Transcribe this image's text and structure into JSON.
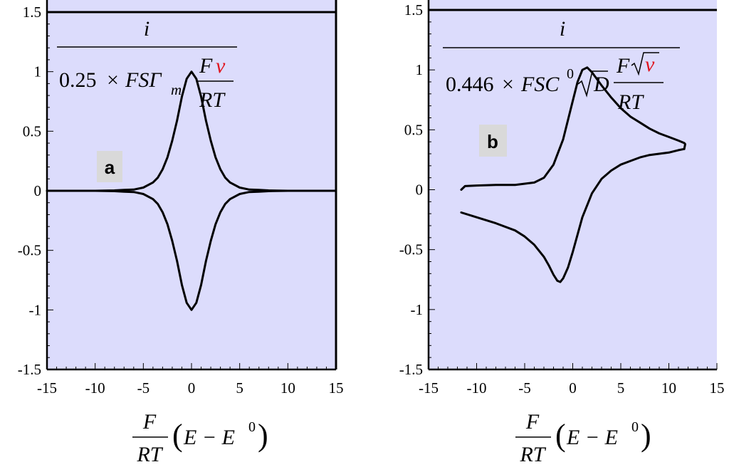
{
  "chart_data": [
    {
      "panel_label": "a",
      "type": "line",
      "xlim": [
        -15,
        15
      ],
      "ylim": [
        -1.5,
        1.5
      ],
      "xticks": [
        "-15",
        "-10",
        "-5",
        "0",
        "5",
        "10",
        "15"
      ],
      "yticks": [
        "-1.5",
        "-1",
        "-0.5",
        "0",
        "0.5",
        "1",
        "1.5"
      ],
      "ylabel": {
        "numerator": "i",
        "coefficient": "0.25",
        "times": "×",
        "factor_main": "FSΓ",
        "factor_sub": "m",
        "frac_num": "F",
        "frac_num_highlight": "v",
        "frac_den": "RT"
      },
      "xlabel": {
        "frac_num": "F",
        "frac_den": "RT",
        "paren_open": "(",
        "expr": "E − E",
        "expr_sup": "0",
        "paren_close": ")"
      },
      "background": "#dcdcfc",
      "line_color": "#000000",
      "highlight_color": "#e0141e",
      "series": [
        {
          "x": [
            -15,
            -12,
            -10,
            -8,
            -7,
            -6,
            -5,
            -4,
            -3.5,
            -3,
            -2.5,
            -2,
            -1.5,
            -1,
            -0.5,
            0,
            0.5,
            1,
            1.5,
            2,
            2.5,
            3,
            3.5,
            4,
            5,
            6,
            7,
            8,
            10,
            12,
            15
          ],
          "y": [
            0,
            0,
            0,
            0.003,
            0.007,
            0.01,
            0.027,
            0.07,
            0.11,
            0.18,
            0.28,
            0.42,
            0.59,
            0.79,
            0.94,
            1.0,
            0.94,
            0.79,
            0.59,
            0.42,
            0.28,
            0.18,
            0.11,
            0.07,
            0.027,
            0.01,
            0.007,
            0.003,
            0,
            0,
            0
          ]
        },
        {
          "x": [
            -15,
            -12,
            -10,
            -8,
            -7,
            -6,
            -5,
            -4,
            -3.5,
            -3,
            -2.5,
            -2,
            -1.5,
            -1,
            -0.5,
            0,
            0.5,
            1,
            1.5,
            2,
            2.5,
            3,
            3.5,
            4,
            5,
            6,
            7,
            8,
            10,
            12,
            15
          ],
          "y": [
            0,
            0,
            0,
            -0.003,
            -0.007,
            -0.01,
            -0.027,
            -0.07,
            -0.11,
            -0.18,
            -0.28,
            -0.42,
            -0.59,
            -0.79,
            -0.94,
            -1.0,
            -0.94,
            -0.79,
            -0.59,
            -0.42,
            -0.28,
            -0.18,
            -0.11,
            -0.07,
            -0.027,
            -0.01,
            -0.007,
            -0.003,
            0,
            0,
            0
          ]
        }
      ]
    },
    {
      "panel_label": "b",
      "type": "line",
      "xlim": [
        -15,
        15
      ],
      "ylim": [
        -1.5,
        1.5
      ],
      "xticks": [
        "-15",
        "-10",
        "-5",
        "0",
        "5",
        "10",
        "15"
      ],
      "yticks": [
        "-1.5",
        "-1",
        "-0.5",
        "0",
        "0.5",
        "1",
        "1.5"
      ],
      "ylabel": {
        "numerator": "i",
        "coefficient": "0.446",
        "times": "×",
        "factor_main": "FSC",
        "factor_sup": "0",
        "sqrt_arg": "D",
        "frac_num": "F",
        "frac_num_highlight": "v",
        "frac_den": "RT"
      },
      "xlabel": {
        "frac_num": "F",
        "frac_den": "RT",
        "paren_open": "(",
        "expr": "E − E",
        "expr_sup": "0",
        "paren_close": ")"
      },
      "background": "#dcdcfc",
      "line_color": "#000000",
      "highlight_color": "#e0141e",
      "series": [
        {
          "x": [
            -11.6,
            -11.2,
            -10,
            -8,
            -6,
            -4,
            -3,
            -2,
            -1,
            0,
            0.5,
            1,
            1.5,
            2,
            3,
            4,
            5,
            6,
            7,
            8,
            9,
            10,
            11,
            11.6,
            11.7,
            11.6
          ],
          "y": [
            0.0,
            0.03,
            0.035,
            0.04,
            0.04,
            0.06,
            0.1,
            0.21,
            0.42,
            0.74,
            0.9,
            1.0,
            1.02,
            0.98,
            0.87,
            0.77,
            0.68,
            0.61,
            0.56,
            0.51,
            0.47,
            0.44,
            0.41,
            0.39,
            0.38,
            0.34
          ]
        },
        {
          "x": [
            11.6,
            11,
            10,
            9,
            8,
            7,
            6,
            5,
            4,
            3,
            2,
            1,
            0,
            -0.5,
            -1,
            -1.3,
            -1.6,
            -2,
            -2.5,
            -3,
            -4,
            -5,
            -6,
            -8,
            -10,
            -11.6
          ],
          "y": [
            0.34,
            0.33,
            0.31,
            0.3,
            0.29,
            0.27,
            0.24,
            0.21,
            0.16,
            0.09,
            -0.03,
            -0.23,
            -0.52,
            -0.65,
            -0.74,
            -0.77,
            -0.76,
            -0.71,
            -0.63,
            -0.56,
            -0.46,
            -0.39,
            -0.34,
            -0.28,
            -0.23,
            -0.19
          ]
        }
      ]
    }
  ]
}
